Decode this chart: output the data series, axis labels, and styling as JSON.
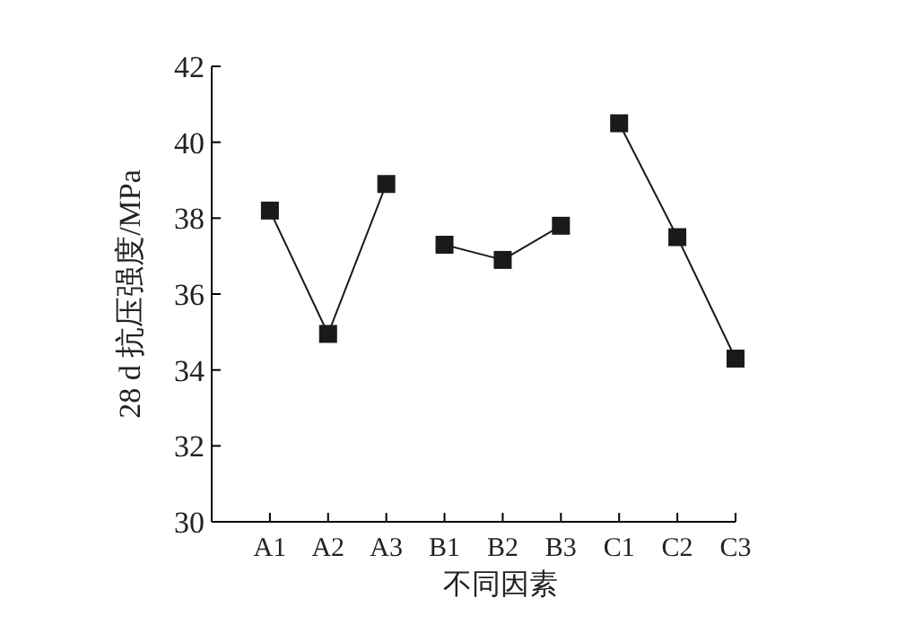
{
  "chart_data": {
    "type": "line",
    "xlabel": "不同因素",
    "ylabel": "28 d 抗压强度/MPa",
    "categories": [
      "A1",
      "A2",
      "A3",
      "B1",
      "B2",
      "B3",
      "C1",
      "C2",
      "C3"
    ],
    "series": [
      {
        "color": "#1a1a1a",
        "values": [
          38.2,
          34.95,
          38.9,
          null,
          null,
          null,
          null,
          null,
          null
        ]
      },
      {
        "color": "#1a1a1a",
        "values": [
          null,
          null,
          null,
          37.3,
          36.9,
          37.8,
          null,
          null,
          null
        ]
      },
      {
        "color": "#1a1a1a",
        "values": [
          null,
          null,
          null,
          null,
          null,
          null,
          40.5,
          37.5,
          34.3
        ]
      }
    ],
    "ylim": [
      30,
      42
    ],
    "yticks": [
      30,
      32,
      34,
      36,
      38,
      40,
      42
    ],
    "marker": "square",
    "line_style": "solid",
    "grid": false
  }
}
